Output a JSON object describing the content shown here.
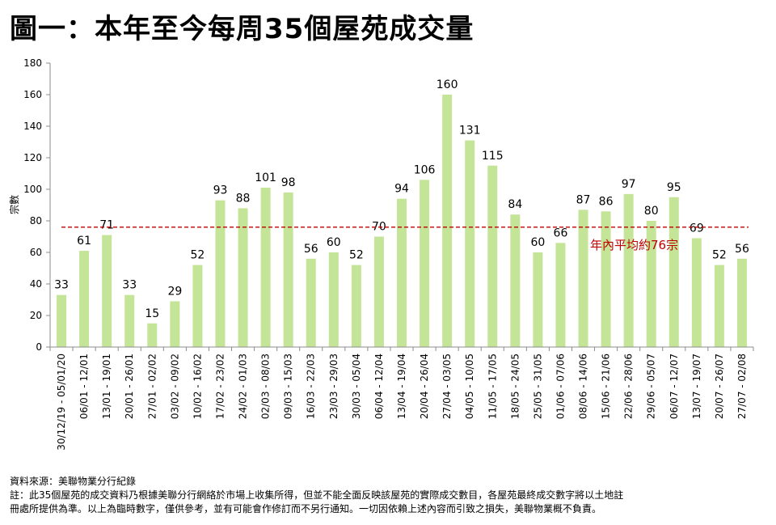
{
  "title": "圖一：本年至今每周35個屋苑成交量",
  "chart_data": {
    "type": "bar",
    "ylabel": "宗數",
    "xlabel": "",
    "ylim": [
      0,
      180
    ],
    "yticks": [
      0,
      20,
      40,
      60,
      80,
      100,
      120,
      140,
      160,
      180
    ],
    "grid": false,
    "bar_color": "#c4e597",
    "average_line": {
      "value": 76,
      "label": "年內平均約76宗",
      "color": "#c00000"
    },
    "categories": [
      "30/12/19 - 05/01/20",
      "06/01 - 12/01",
      "13/01 - 19/01",
      "20/01 - 26/01",
      "27/01 - 02/02",
      "03/02 - 09/02",
      "10/02 - 16/02",
      "17/02 - 23/02",
      "24/02 - 01/03",
      "02/03 - 08/03",
      "09/03 - 15/03",
      "16/03 - 22/03",
      "23/03 - 29/03",
      "30/03 - 05/04",
      "06/04 - 12/04",
      "13/04 - 19/04",
      "20/04 - 26/04",
      "27/04 - 03/05",
      "04/05 - 10/05",
      "11/05 - 17/05",
      "18/05 - 24/05",
      "25/05 - 31/05",
      "01/06 - 07/06",
      "08/06 - 14/06",
      "15/06 - 21/06",
      "22/06 - 28/06",
      "29/06 - 05/07",
      "06/07 - 12/07",
      "13/07 - 19/07",
      "20/07 - 26/07",
      "27/07 - 02/08"
    ],
    "values": [
      33,
      61,
      71,
      33,
      15,
      29,
      52,
      93,
      88,
      101,
      98,
      56,
      60,
      52,
      70,
      94,
      106,
      160,
      131,
      115,
      84,
      60,
      66,
      87,
      86,
      97,
      80,
      95,
      69,
      52,
      56
    ]
  },
  "notes": {
    "source": "資料來源：美聯物業分行紀錄",
    "line1": "註：此35個屋苑的成交資料乃根據美聯分行網絡於市場上收集所得，但並不能全面反映該屋苑的實際成交數目，各屋苑最終成交數字將以土地註",
    "line2": "冊處所提供為準。以上為臨時數字，僅供參考，並有可能會作修訂而不另行通知。一切因依賴上述內容而引致之損失，美聯物業概不負責。"
  }
}
